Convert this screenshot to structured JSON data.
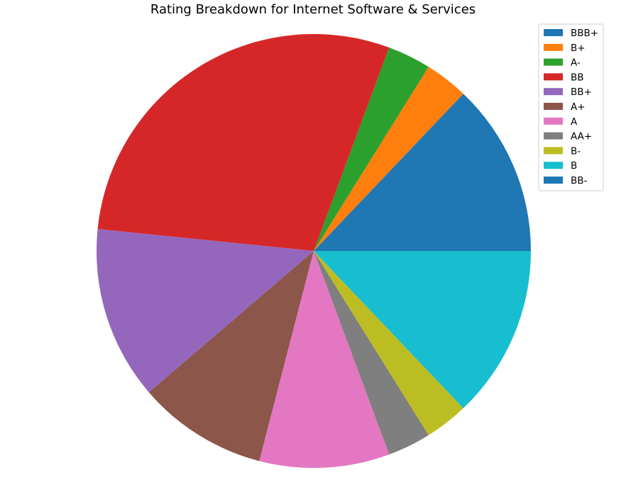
{
  "chart_data": {
    "type": "pie",
    "title": "Rating Breakdown for Internet Software & Services",
    "start_angle_deg": 0,
    "direction": "counterclockwise",
    "legend_position": "top-right",
    "slices": [
      {
        "label": "BBB+",
        "value": 4,
        "color": "#1f77b4"
      },
      {
        "label": "B+",
        "value": 1,
        "color": "#ff7f0e"
      },
      {
        "label": "A-",
        "value": 1,
        "color": "#2ca02c"
      },
      {
        "label": "BB",
        "value": 9,
        "color": "#d62728"
      },
      {
        "label": "BB+",
        "value": 4,
        "color": "#9467bd"
      },
      {
        "label": "A+",
        "value": 3,
        "color": "#8c564b"
      },
      {
        "label": "A",
        "value": 3,
        "color": "#e377c2"
      },
      {
        "label": "AA+",
        "value": 1,
        "color": "#7f7f7f"
      },
      {
        "label": "B-",
        "value": 1,
        "color": "#bcbd22"
      },
      {
        "label": "B",
        "value": 4,
        "color": "#17becf"
      },
      {
        "label": "BB-",
        "value": 0,
        "color": "#1f77b4"
      }
    ]
  }
}
